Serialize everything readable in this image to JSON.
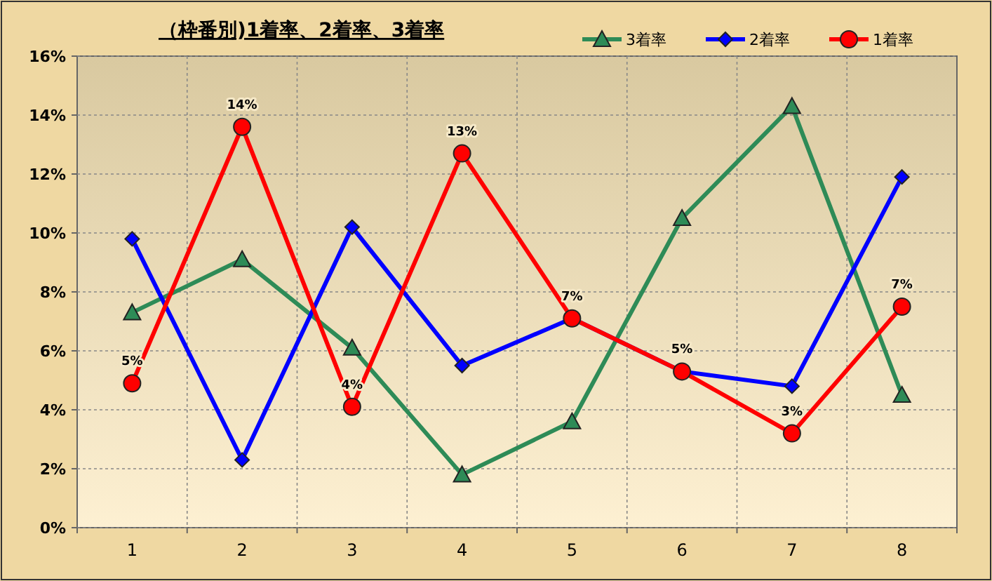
{
  "chart_data": {
    "type": "line",
    "title": "（枠番別)1着率、2着率、3着率",
    "categories": [
      "1",
      "2",
      "3",
      "4",
      "5",
      "6",
      "7",
      "8"
    ],
    "series": [
      {
        "name": "3着率",
        "color": "#2e8b57",
        "marker": "triangle",
        "values": [
          7.3,
          9.1,
          6.1,
          1.8,
          3.6,
          10.5,
          14.3,
          4.5
        ]
      },
      {
        "name": "2着率",
        "color": "#0000ff",
        "marker": "diamond",
        "values": [
          9.8,
          2.3,
          10.2,
          5.5,
          7.1,
          5.3,
          4.8,
          11.9
        ]
      },
      {
        "name": "1着率",
        "color": "#ff0000",
        "marker": "circle",
        "values": [
          4.9,
          13.6,
          4.1,
          12.7,
          7.1,
          5.3,
          3.2,
          7.5
        ],
        "value_labels": [
          "5%",
          "14%",
          "4%",
          "13%",
          "7%",
          "5%",
          "3%",
          "7%"
        ]
      }
    ],
    "ylim": [
      0,
      16
    ],
    "yticks": [
      {
        "value": 0,
        "label": "0%"
      },
      {
        "value": 2,
        "label": "2%"
      },
      {
        "value": 4,
        "label": "4%"
      },
      {
        "value": 6,
        "label": "6%"
      },
      {
        "value": 8,
        "label": "8%"
      },
      {
        "value": 10,
        "label": "10%"
      },
      {
        "value": 12,
        "label": "12%"
      },
      {
        "value": 14,
        "label": "14%"
      },
      {
        "value": 16,
        "label": "16%"
      }
    ],
    "grid": true,
    "legend": "top right",
    "line_style": "solid"
  }
}
